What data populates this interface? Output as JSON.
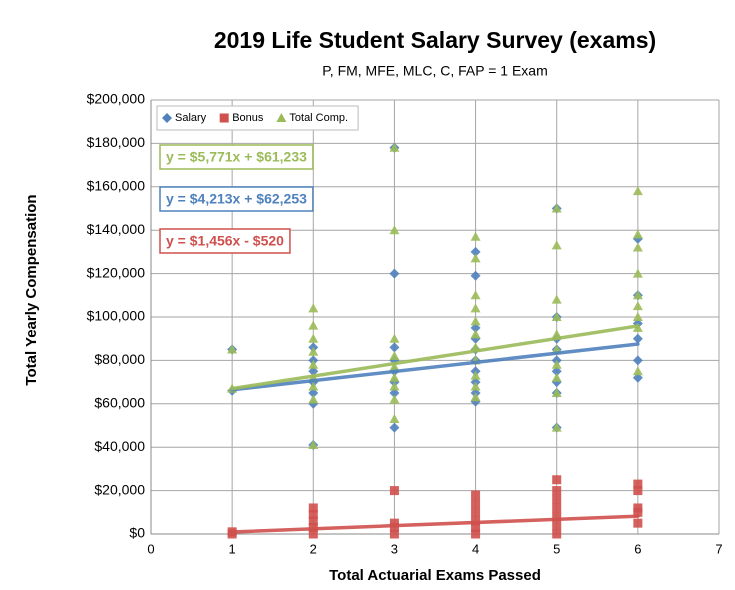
{
  "chart_data": {
    "type": "scatter",
    "title": "2019 Life Student Salary Survey (exams)",
    "subtitle": "P, FM, MFE, MLC, C, FAP = 1 Exam",
    "x_label": "Total Actuarial Exams Passed",
    "y_label": "Total Yearly Compensation",
    "xlim": [
      0,
      7
    ],
    "xticks": [
      0,
      1,
      2,
      3,
      4,
      5,
      6,
      7
    ],
    "ylim": [
      0,
      200000
    ],
    "yticks": [
      {
        "value": 0,
        "label": "$0"
      },
      {
        "value": 20000,
        "label": "$20,000"
      },
      {
        "value": 40000,
        "label": "$40,000"
      },
      {
        "value": 60000,
        "label": "$60,000"
      },
      {
        "value": 80000,
        "label": "$80,000"
      },
      {
        "value": 100000,
        "label": "$100,000"
      },
      {
        "value": 120000,
        "label": "$120,000"
      },
      {
        "value": 140000,
        "label": "$140,000"
      },
      {
        "value": 160000,
        "label": "$160,000"
      },
      {
        "value": 180000,
        "label": "$180,000"
      },
      {
        "value": 200000,
        "label": "$200,000"
      }
    ],
    "grid": true,
    "legend": "top-left",
    "series": [
      {
        "name": "Salary",
        "color": "#4f81bd",
        "marker": "diamond",
        "x": [
          1,
          1,
          2,
          2,
          2,
          2,
          2,
          2,
          2,
          3,
          3,
          3,
          3,
          3,
          3,
          3,
          3,
          4,
          4,
          4,
          4,
          4,
          4,
          4,
          4,
          4,
          4,
          5,
          5,
          5,
          5,
          5,
          5,
          5,
          5,
          5,
          6,
          6,
          6,
          6,
          6,
          6
        ],
        "values": [
          66000,
          85000,
          41000,
          60000,
          65000,
          70000,
          75000,
          80000,
          86000,
          49000,
          65000,
          70000,
          75000,
          80000,
          86000,
          120000,
          178000,
          61000,
          65000,
          70000,
          75000,
          80000,
          85000,
          90000,
          95000,
          119000,
          130000,
          49000,
          65000,
          70000,
          75000,
          80000,
          85000,
          90000,
          100000,
          150000,
          72000,
          80000,
          90000,
          97000,
          110000,
          136000
        ],
        "trend": {
          "label": "y = $4,213x + $62,253",
          "slope": 4213,
          "intercept": 62253
        }
      },
      {
        "name": "Bonus",
        "color": "#d0504d",
        "marker": "square",
        "x": [
          1,
          1,
          2,
          2,
          2,
          2,
          2,
          3,
          3,
          3,
          3,
          4,
          4,
          4,
          4,
          4,
          4,
          5,
          5,
          5,
          5,
          5,
          5,
          5,
          6,
          6,
          6,
          6,
          6
        ],
        "values": [
          0,
          1000,
          0,
          3000,
          6000,
          9000,
          12000,
          0,
          3000,
          5000,
          20000,
          0,
          3000,
          6000,
          10000,
          14000,
          18000,
          0,
          4000,
          8000,
          12000,
          16000,
          20000,
          25000,
          5000,
          10000,
          12000,
          20000,
          23000
        ],
        "trend": {
          "label": "y = $1,456x - $520",
          "slope": 1456,
          "intercept": -520
        }
      },
      {
        "name": "Total Comp.",
        "color": "#9bbb59",
        "marker": "triangle",
        "x": [
          1,
          1,
          2,
          2,
          2,
          2,
          2,
          2,
          2,
          2,
          2,
          3,
          3,
          3,
          3,
          3,
          3,
          3,
          3,
          3,
          4,
          4,
          4,
          4,
          4,
          4,
          4,
          4,
          4,
          4,
          4,
          5,
          5,
          5,
          5,
          5,
          5,
          5,
          5,
          5,
          5,
          6,
          6,
          6,
          6,
          6,
          6,
          6,
          6,
          6
        ],
        "values": [
          67000,
          85000,
          41000,
          62000,
          68000,
          72000,
          78000,
          84000,
          90000,
          96000,
          104000,
          53000,
          62000,
          68000,
          72000,
          77000,
          82000,
          90000,
          140000,
          178000,
          63000,
          68000,
          73000,
          80000,
          86000,
          92000,
          98000,
          104000,
          110000,
          127000,
          137000,
          49000,
          65000,
          72000,
          78000,
          85000,
          92000,
          100000,
          108000,
          133000,
          150000,
          75000,
          95000,
          100000,
          105000,
          110000,
          120000,
          132000,
          138000,
          158000
        ],
        "trend": {
          "label": "y = $5,771x + $61,233",
          "slope": 5771,
          "intercept": 61233
        }
      }
    ]
  }
}
